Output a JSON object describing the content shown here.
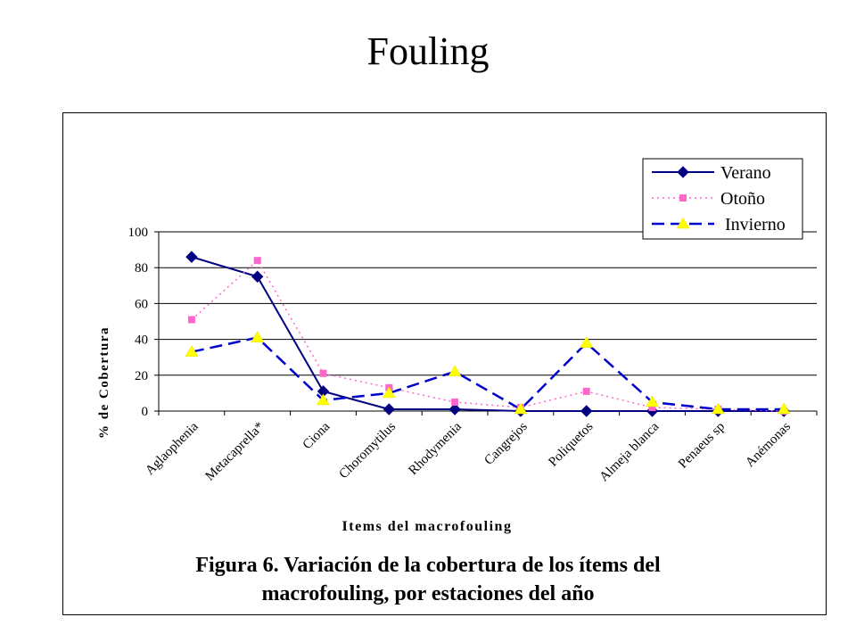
{
  "slide": {
    "title": "Fouling",
    "caption_line1": "Figura 6.  Variación de la cobertura de los ítems del",
    "caption_line2": "macrofouling, por estaciones del año"
  },
  "chart_data": {
    "type": "line",
    "xlabel": "Items del macrofouling",
    "ylabel": "% de Cobertura",
    "ylim": [
      0,
      100
    ],
    "yticks": [
      0,
      20,
      40,
      60,
      80,
      100
    ],
    "grid": true,
    "legend_position": "top-right",
    "categories": [
      "Aglaophenia",
      "Metacaprella*",
      "Ciona",
      "Choromytilus",
      "Rhodymenia",
      "Cangrejos",
      "Poliquetos",
      "Almeja blanca",
      "Penaeus sp",
      "Anémonas"
    ],
    "series": [
      {
        "name": "Verano",
        "values": [
          86,
          75,
          11,
          1,
          1,
          0,
          0,
          0,
          0,
          0
        ],
        "color": "#000080",
        "marker": "diamond",
        "dash": "solid"
      },
      {
        "name": "Otoño",
        "values": [
          51,
          84,
          21,
          13,
          5,
          2,
          11,
          2,
          1,
          0
        ],
        "color": "#ff66cc",
        "marker": "square",
        "dash": "dotted"
      },
      {
        "name": "Invierno",
        "values": [
          33,
          41,
          6,
          10,
          22,
          1,
          38,
          5,
          1,
          1
        ],
        "color": "#0000cc",
        "marker": "triangle",
        "dash": "dashed"
      }
    ]
  }
}
